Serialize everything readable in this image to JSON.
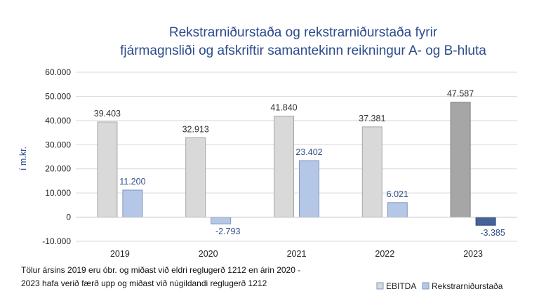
{
  "chart_data": {
    "type": "bar",
    "title_lines": [
      "Rekstrarniðurstaða og rekstrarniðurstaða fyrir",
      "fjármagnsliði og afskriftir samantekinn reikningur A- og B-hluta"
    ],
    "ylabel": "í m.kr.",
    "xlabel": "",
    "ylim": [
      -10000,
      60000
    ],
    "yticks": [
      -10000,
      0,
      10000,
      20000,
      30000,
      40000,
      50000,
      60000
    ],
    "ytick_labels": [
      "-10.000",
      "0",
      "10.000",
      "20.000",
      "30.000",
      "40.000",
      "50.000",
      "60.000"
    ],
    "grid": true,
    "categories": [
      "2019",
      "2020",
      "2021",
      "2022",
      "2023"
    ],
    "series": [
      {
        "name": "EBITDA",
        "values": [
          39403,
          32913,
          41840,
          37381,
          47587
        ],
        "labels": [
          "39.403",
          "32.913",
          "41.840",
          "37.381",
          "47.587"
        ],
        "color": "#d9d9d9",
        "highlight_color": "#a6a6a6"
      },
      {
        "name": "Rekstrarniðurstaða",
        "values": [
          11200,
          -2793,
          23402,
          6021,
          -3385
        ],
        "labels": [
          "11.200",
          "-2.793",
          "23.402",
          "6.021",
          "-3.385"
        ],
        "color": "#b4c7e7",
        "highlight_color": "#44639a"
      }
    ],
    "highlight_category": "2023",
    "legend_position": "bottom-right",
    "note_lines": [
      "Tölur ársins 2019 eru óbr. og miðast við eldri reglugerð 1212 en árin 2020 -",
      "2023 hafa verið færð upp og miðast við núgildandi reglugerð 1212"
    ]
  }
}
